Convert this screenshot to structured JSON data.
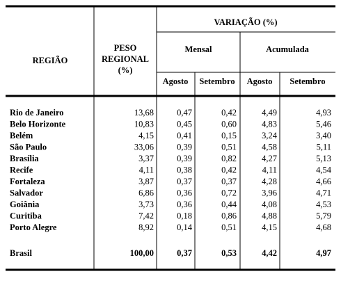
{
  "table": {
    "header": {
      "region": "REGIÃO",
      "weight": [
        "PESO",
        "REGIONAL",
        "(%)"
      ],
      "variation": "VARIAÇÃO (%)",
      "monthly": "Mensal",
      "cumulative": "Acumulada",
      "months": [
        "Agosto",
        "Setembro",
        "Agosto",
        "Setembro"
      ]
    },
    "rows": [
      [
        "Rio de Janeiro",
        "13,68",
        "0,47",
        "0,42",
        "4,49",
        "4,93"
      ],
      [
        "Belo Horizonte",
        "10,83",
        "0,45",
        "0,60",
        "4,83",
        "5,46"
      ],
      [
        "Belém",
        "4,15",
        "0,41",
        "0,15",
        "3,24",
        "3,40"
      ],
      [
        "São Paulo",
        "33,06",
        "0,39",
        "0,51",
        "4,58",
        "5,11"
      ],
      [
        "Brasília",
        "3,37",
        "0,39",
        "0,82",
        "4,27",
        "5,13"
      ],
      [
        "Recife",
        "4,11",
        "0,38",
        "0,42",
        "4,11",
        "4,54"
      ],
      [
        "Fortaleza",
        "3,87",
        "0,37",
        "0,37",
        "4,28",
        "4,66"
      ],
      [
        "Salvador",
        "6,86",
        "0,36",
        "0,72",
        "3,96",
        "4,71"
      ],
      [
        "Goiânia",
        "3,73",
        "0,36",
        "0,44",
        "4,08",
        "4,53"
      ],
      [
        "Curitiba",
        "7,42",
        "0,18",
        "0,86",
        "4,88",
        "5,79"
      ],
      [
        "Porto Alegre",
        "8,92",
        "0,14",
        "0,51",
        "4,15",
        "4,68"
      ]
    ],
    "total": [
      "Brasil",
      "100,00",
      "0,37",
      "0,53",
      "4,42",
      "4,97"
    ]
  }
}
